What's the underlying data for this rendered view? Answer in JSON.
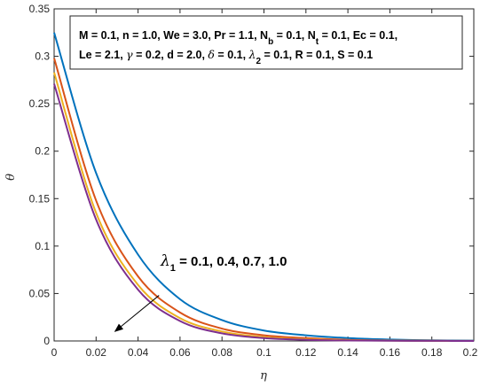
{
  "chart_data": {
    "type": "line",
    "xlabel": "η",
    "ylabel": "θ",
    "xlim": [
      0,
      0.2
    ],
    "ylim": [
      0,
      0.35
    ],
    "x_ticks": [
      "0",
      "0.02",
      "0.04",
      "0.06",
      "0.08",
      "0.1",
      "0.12",
      "0.14",
      "0.16",
      "0.18",
      "0.2"
    ],
    "y_ticks": [
      "0",
      "0.05",
      "0.1",
      "0.15",
      "0.2",
      "0.25",
      "0.3",
      "0.35"
    ],
    "grid": false,
    "series": [
      {
        "color": "#0072BD",
        "x": [
          0,
          0.02,
          0.04,
          0.06,
          0.08,
          0.1,
          0.12,
          0.14,
          0.16,
          0.18,
          0.2
        ],
        "y": [
          0.325,
          0.177,
          0.091,
          0.044,
          0.022,
          0.011,
          0.006,
          0.003,
          0.0015,
          0.0007,
          0.0003
        ]
      },
      {
        "color": "#D95319",
        "x": [
          0,
          0.02,
          0.04,
          0.06,
          0.08,
          0.1,
          0.12,
          0.14,
          0.16,
          0.18,
          0.2
        ],
        "y": [
          0.298,
          0.148,
          0.068,
          0.03,
          0.013,
          0.006,
          0.003,
          0.0012,
          0.0005,
          0.0002,
          0.0001
        ]
      },
      {
        "color": "#EDB120",
        "x": [
          0,
          0.02,
          0.04,
          0.06,
          0.08,
          0.1,
          0.12,
          0.14,
          0.16,
          0.18,
          0.2
        ],
        "y": [
          0.283,
          0.135,
          0.059,
          0.024,
          0.01,
          0.004,
          0.0017,
          0.0007,
          0.0003,
          0.0001,
          0.0
        ]
      },
      {
        "color": "#7E2F8E",
        "x": [
          0,
          0.02,
          0.04,
          0.06,
          0.08,
          0.1,
          0.12,
          0.14,
          0.16,
          0.18,
          0.2
        ],
        "y": [
          0.271,
          0.128,
          0.054,
          0.021,
          0.008,
          0.003,
          0.0012,
          0.0005,
          0.0002,
          0.0001,
          0.0
        ]
      }
    ],
    "params_box": {
      "line1": [
        "M = 0.1, n = 1.0, We = 3.0, Pr = 1.1, N",
        "b",
        " = 0.1, N",
        "t",
        " = 0.1, Ec = 0.1,"
      ],
      "line2": [
        "Le = 2.1, ",
        "γ",
        " = 0.2, d = 2.0, ",
        "δ",
        " = 0.1, ",
        "λ",
        "2",
        " = 0.1, R = 0.1, S = 0.1"
      ]
    },
    "annotation": {
      "symbol": "λ",
      "subscript": "1",
      "text": " = 0.1, 0.4, 0.7, 1.0",
      "arrow_from": [
        0.05,
        0.048
      ],
      "arrow_to": [
        0.029,
        0.01
      ]
    }
  }
}
